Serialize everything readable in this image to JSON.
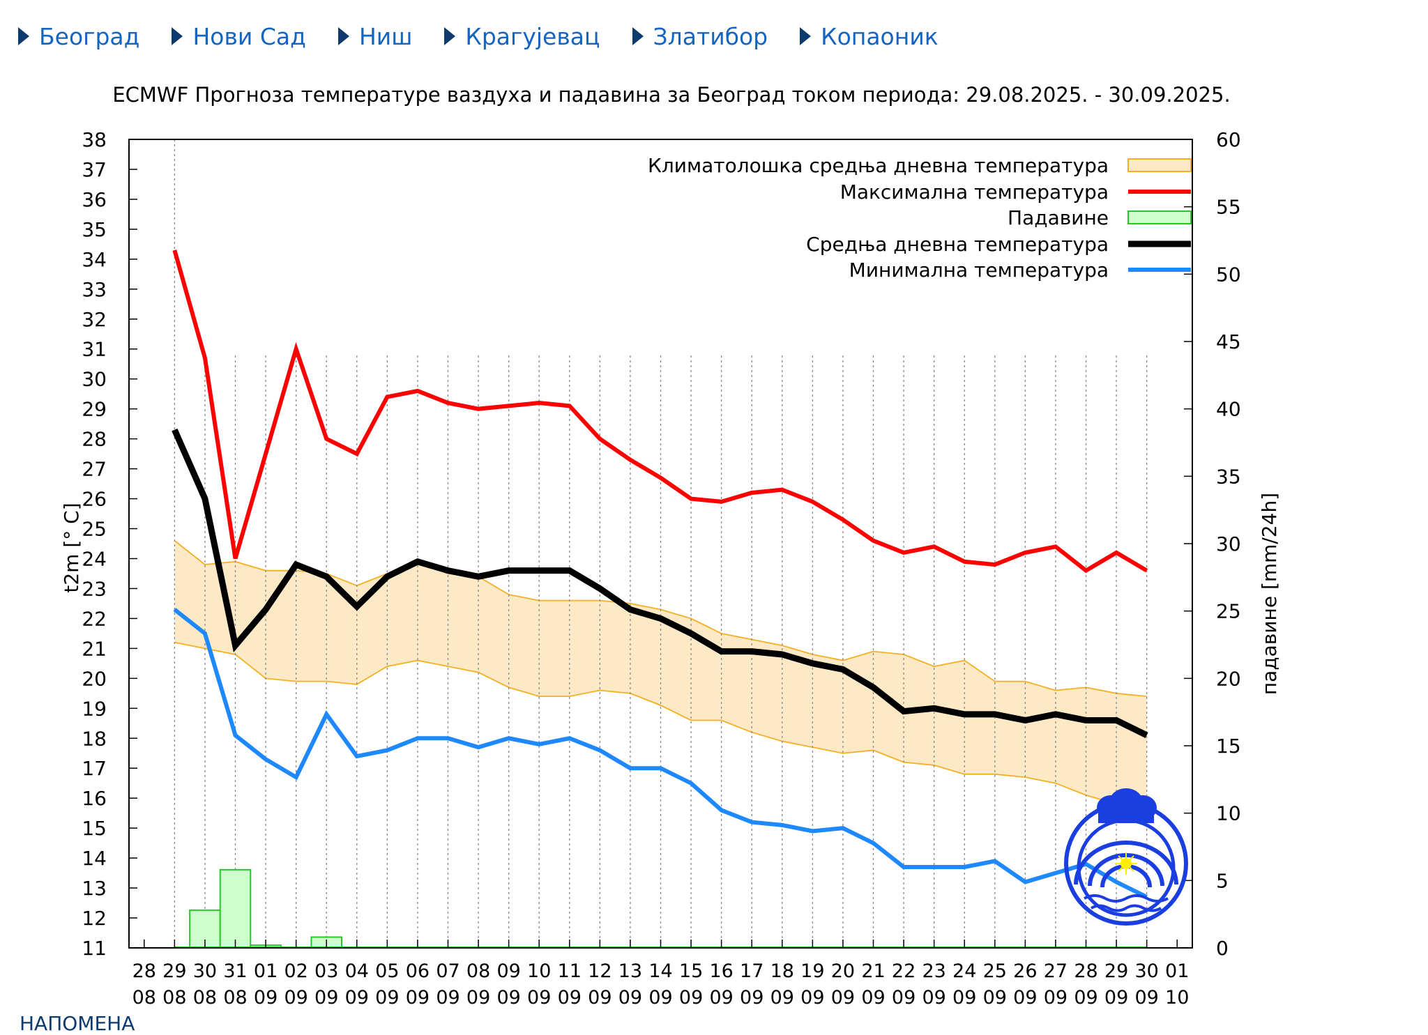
{
  "nav": [
    {
      "label": "Београд"
    },
    {
      "label": "Нови Сад"
    },
    {
      "label": "Ниш"
    },
    {
      "label": "Крагујевац"
    },
    {
      "label": "Златибор"
    },
    {
      "label": "Копаоник"
    }
  ],
  "note": "НАПОМЕНА",
  "colors": {
    "nav_link": "#1565c0",
    "max_temp": "#ff0000",
    "mean_temp": "#000000",
    "min_temp": "#1e88ff",
    "precip_fill": "#ccffcc",
    "precip_edge": "#22cc22",
    "clim_fill": "#fde9c6",
    "clim_edge": "#f3b020"
  },
  "logo_icon": "rhmz-logo-icon",
  "chart_data": {
    "type": "line",
    "title": "ECMWF Прогноза температуре ваздуха и падавина за Београд током периода: 29.08.2025. - 30.09.2025.",
    "ylabel": "t2m [° C]",
    "y2label": "падавине [mm/24h]",
    "ylim": [
      11,
      38
    ],
    "y2lim": [
      0,
      60
    ],
    "y2ticks": [
      0,
      5,
      10,
      15,
      20,
      25,
      30,
      35,
      40,
      45,
      50,
      55,
      60
    ],
    "grid": "vertical dotted",
    "legend_position": "top-right",
    "x_tick_labels": [
      [
        "28",
        "08"
      ],
      [
        "29",
        "08"
      ],
      [
        "30",
        "08"
      ],
      [
        "31",
        "08"
      ],
      [
        "01",
        "09"
      ],
      [
        "02",
        "09"
      ],
      [
        "03",
        "09"
      ],
      [
        "04",
        "09"
      ],
      [
        "05",
        "09"
      ],
      [
        "06",
        "09"
      ],
      [
        "07",
        "09"
      ],
      [
        "08",
        "09"
      ],
      [
        "09",
        "09"
      ],
      [
        "10",
        "09"
      ],
      [
        "11",
        "09"
      ],
      [
        "12",
        "09"
      ],
      [
        "13",
        "09"
      ],
      [
        "14",
        "09"
      ],
      [
        "15",
        "09"
      ],
      [
        "16",
        "09"
      ],
      [
        "17",
        "09"
      ],
      [
        "18",
        "09"
      ],
      [
        "19",
        "09"
      ],
      [
        "20",
        "09"
      ],
      [
        "21",
        "09"
      ],
      [
        "22",
        "09"
      ],
      [
        "23",
        "09"
      ],
      [
        "24",
        "09"
      ],
      [
        "25",
        "09"
      ],
      [
        "26",
        "09"
      ],
      [
        "27",
        "09"
      ],
      [
        "28",
        "09"
      ],
      [
        "29",
        "09"
      ],
      [
        "30",
        "09"
      ],
      [
        "01",
        "10"
      ]
    ],
    "legend": [
      {
        "key": "climatology",
        "label": "Климатолошка средња дневна температура"
      },
      {
        "key": "max",
        "label": "Максимална температура"
      },
      {
        "key": "precip",
        "label": "Падавине"
      },
      {
        "key": "mean",
        "label": "Средња дневна температура"
      },
      {
        "key": "min",
        "label": "Минимална температура"
      }
    ],
    "climatology_band": {
      "x": [
        1,
        2,
        3,
        4,
        5,
        6,
        7,
        8,
        9,
        10,
        11,
        12,
        13,
        14,
        15,
        16,
        17,
        18,
        19,
        20,
        21,
        22,
        23,
        24,
        25,
        26,
        27,
        28,
        29,
        30,
        31,
        32,
        33
      ],
      "upper": [
        24.6,
        23.8,
        23.9,
        23.6,
        23.6,
        23.5,
        23.1,
        23.5,
        23.9,
        23.5,
        23.4,
        22.8,
        22.6,
        22.6,
        22.6,
        22.5,
        22.3,
        22.0,
        21.5,
        21.3,
        21.1,
        20.8,
        20.6,
        20.9,
        20.8,
        20.4,
        20.6,
        19.9,
        19.9,
        19.6,
        19.7,
        19.5,
        19.4
      ],
      "lower": [
        21.2,
        21.0,
        20.8,
        20.0,
        19.9,
        19.9,
        19.8,
        20.4,
        20.6,
        20.4,
        20.2,
        19.7,
        19.4,
        19.4,
        19.6,
        19.5,
        19.1,
        18.6,
        18.6,
        18.2,
        17.9,
        17.7,
        17.5,
        17.6,
        17.2,
        17.1,
        16.8,
        16.8,
        16.7,
        16.5,
        16.1,
        15.8,
        15.6
      ]
    },
    "series": [
      {
        "key": "max",
        "name": "Максимална температура",
        "x": [
          1,
          2,
          3,
          4,
          5,
          6,
          7,
          8,
          9,
          10,
          11,
          12,
          13,
          14,
          15,
          16,
          17,
          18,
          19,
          20,
          21,
          22,
          23,
          24,
          25,
          26,
          27,
          28,
          29,
          30,
          31,
          32,
          33
        ],
        "values": [
          34.3,
          30.7,
          24.0,
          27.5,
          31.0,
          28.0,
          27.5,
          29.4,
          29.6,
          29.2,
          29.0,
          29.1,
          29.2,
          29.1,
          28.0,
          27.3,
          26.7,
          26.0,
          25.9,
          26.2,
          26.3,
          25.9,
          25.3,
          24.6,
          24.2,
          24.4,
          23.9,
          23.8,
          24.2,
          24.4,
          23.6,
          24.2,
          23.6
        ]
      },
      {
        "key": "mean",
        "name": "Средња дневна температура",
        "x": [
          1,
          2,
          3,
          4,
          5,
          6,
          7,
          8,
          9,
          10,
          11,
          12,
          13,
          14,
          15,
          16,
          17,
          18,
          19,
          20,
          21,
          22,
          23,
          24,
          25,
          26,
          27,
          28,
          29,
          30,
          31,
          32,
          33
        ],
        "values": [
          28.3,
          26.0,
          21.1,
          22.3,
          23.8,
          23.4,
          22.4,
          23.4,
          23.9,
          23.6,
          23.4,
          23.6,
          23.6,
          23.6,
          23.0,
          22.3,
          22.0,
          21.5,
          20.9,
          20.9,
          20.8,
          20.5,
          20.3,
          19.7,
          18.9,
          19.0,
          18.8,
          18.8,
          18.6,
          18.8,
          18.6,
          18.6,
          18.1
        ]
      },
      {
        "key": "min",
        "name": "Минимална температура",
        "x": [
          1,
          2,
          3,
          4,
          5,
          6,
          7,
          8,
          9,
          10,
          11,
          12,
          13,
          14,
          15,
          16,
          17,
          18,
          19,
          20,
          21,
          22,
          23,
          24,
          25,
          26,
          27,
          28,
          29,
          30,
          31,
          32,
          33
        ],
        "values": [
          22.3,
          21.5,
          18.1,
          17.3,
          16.7,
          18.8,
          17.4,
          17.6,
          18.0,
          18.0,
          17.7,
          18.0,
          17.8,
          18.0,
          17.6,
          17.0,
          17.0,
          16.5,
          15.6,
          15.2,
          15.1,
          14.9,
          15.0,
          14.5,
          13.7,
          13.7,
          13.7,
          13.9,
          13.2,
          13.5,
          13.8,
          13.2,
          12.7
        ]
      }
    ],
    "precipitation": {
      "x": [
        1,
        2,
        3,
        4,
        5,
        6,
        7,
        8,
        9,
        10,
        11,
        12,
        13,
        14,
        15,
        16,
        17,
        18,
        19,
        20,
        21,
        22,
        23,
        24,
        25,
        26,
        27,
        28,
        29,
        30,
        31,
        32,
        33
      ],
      "values": [
        0,
        2.8,
        5.8,
        0.2,
        0,
        0.8,
        0,
        0,
        0,
        0,
        0,
        0,
        0,
        0,
        0,
        0,
        0,
        0,
        0,
        0,
        0,
        0,
        0,
        0,
        0,
        0,
        0,
        0,
        0,
        0,
        0,
        0,
        0
      ]
    }
  }
}
